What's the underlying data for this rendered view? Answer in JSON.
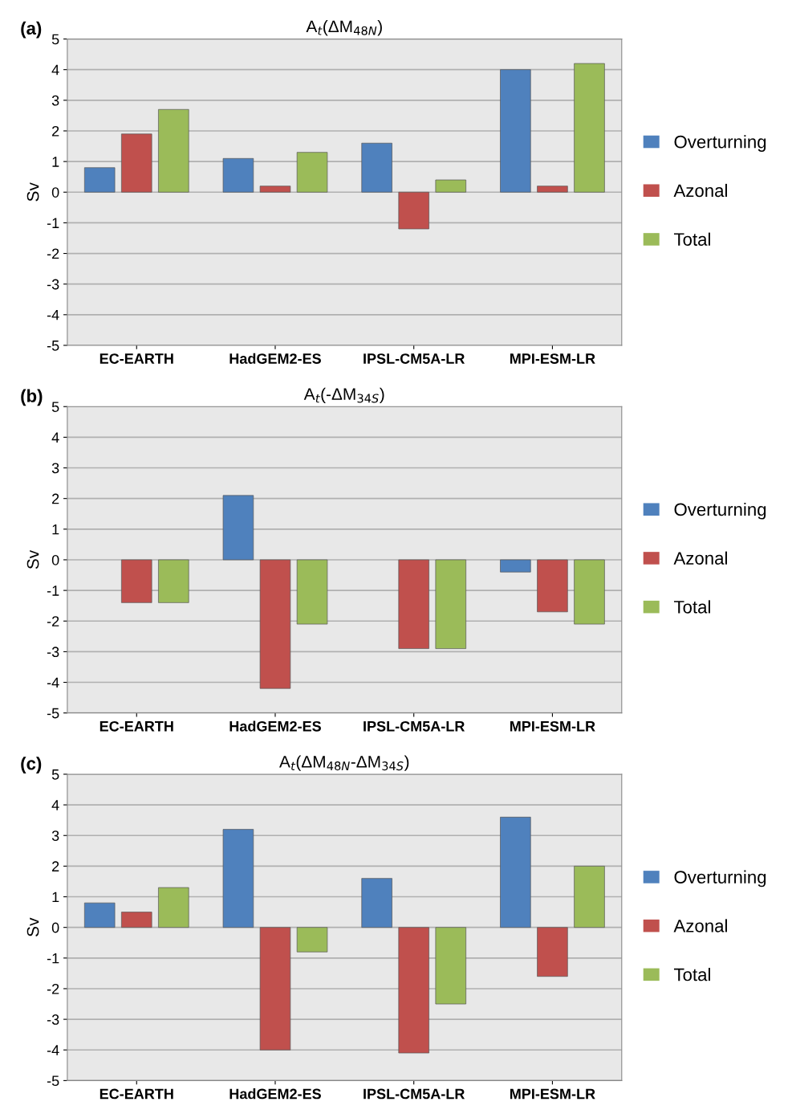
{
  "chart_data": [
    {
      "type": "bar",
      "title": "A$_{t}$(ΔM$_{48N}$)",
      "ylabel": "Sv",
      "annotations": [
        "(a)"
      ],
      "categories": [
        "EC-EARTH",
        "HadGEM2-ES",
        "IPSL-CM5A-LR",
        "MPI-ESM-LR"
      ],
      "series": [
        {
          "name": "Overturning",
          "color": "#4f81bd",
          "values": [
            0.8,
            1.1,
            1.6,
            4.0
          ]
        },
        {
          "name": "Azonal",
          "color": "#c0504d",
          "values": [
            1.9,
            0.2,
            -1.2,
            0.2
          ]
        },
        {
          "name": "Total",
          "color": "#9bbb59",
          "values": [
            2.7,
            1.3,
            0.4,
            4.2
          ]
        }
      ],
      "ylim": [
        -5,
        5
      ],
      "yticks": [
        -5,
        -4,
        -3,
        -2,
        -1,
        0,
        1,
        2,
        3,
        4,
        5
      ],
      "grid": "y",
      "legend": "right"
    },
    {
      "type": "bar",
      "title": "A$_{t}$(-ΔM$_{34S}$)",
      "ylabel": "Sv",
      "annotations": [
        "(b)"
      ],
      "categories": [
        "EC-EARTH",
        "HadGEM2-ES",
        "IPSL-CM5A-LR",
        "MPI-ESM-LR"
      ],
      "series": [
        {
          "name": "Overturning",
          "color": "#4f81bd",
          "values": [
            null,
            2.1,
            null,
            -0.4
          ]
        },
        {
          "name": "Azonal",
          "color": "#c0504d",
          "values": [
            -1.4,
            -4.2,
            -2.9,
            -1.7
          ]
        },
        {
          "name": "Total",
          "color": "#9bbb59",
          "values": [
            -1.4,
            -2.1,
            -2.9,
            -2.1
          ]
        }
      ],
      "ylim": [
        -5,
        5
      ],
      "yticks": [
        -5,
        -4,
        -3,
        -2,
        -1,
        0,
        1,
        2,
        3,
        4,
        5
      ],
      "grid": "y",
      "legend": "right"
    },
    {
      "type": "bar",
      "title": "A$_{t}$(ΔM$_{48N}$-ΔM$_{34S}$)",
      "ylabel": "Sv",
      "annotations": [
        "(c)"
      ],
      "categories": [
        "EC-EARTH",
        "HadGEM2-ES",
        "IPSL-CM5A-LR",
        "MPI-ESM-LR"
      ],
      "series": [
        {
          "name": "Overturning",
          "color": "#4f81bd",
          "values": [
            0.8,
            3.2,
            1.6,
            3.6
          ]
        },
        {
          "name": "Azonal",
          "color": "#c0504d",
          "values": [
            0.5,
            -4.0,
            -4.1,
            -1.6
          ]
        },
        {
          "name": "Total",
          "color": "#9bbb59",
          "values": [
            1.3,
            -0.8,
            -2.5,
            2.0
          ]
        }
      ],
      "ylim": [
        -5,
        5
      ],
      "yticks": [
        -5,
        -4,
        -3,
        -2,
        -1,
        0,
        1,
        2,
        3,
        4,
        5
      ],
      "grid": "y",
      "legend": "right"
    }
  ]
}
